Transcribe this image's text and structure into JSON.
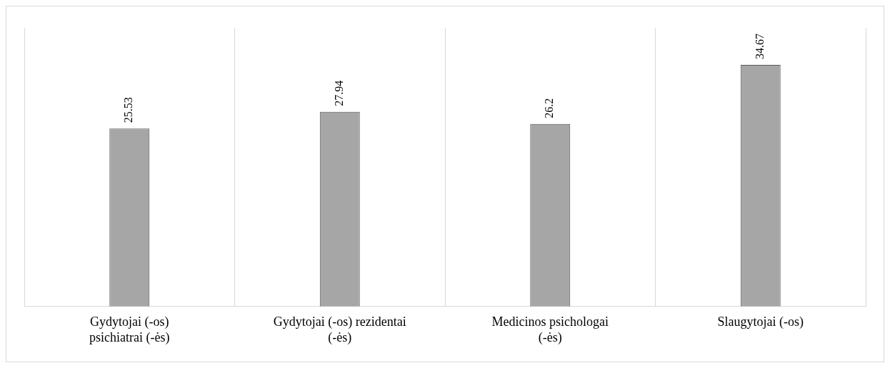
{
  "chart_data": {
    "type": "bar",
    "categories": [
      "Gydytojai (-os) psichiatrai (-ės)",
      "Gydytojai (-os) rezidentai (-ės)",
      "Medicinos psichologai (-ės)",
      "Slaugytojai (-os)"
    ],
    "values": [
      25.53,
      27.94,
      26.2,
      34.67
    ],
    "color": "#a6a6a6",
    "data_labels": true,
    "grid": "x",
    "legend": false
  }
}
